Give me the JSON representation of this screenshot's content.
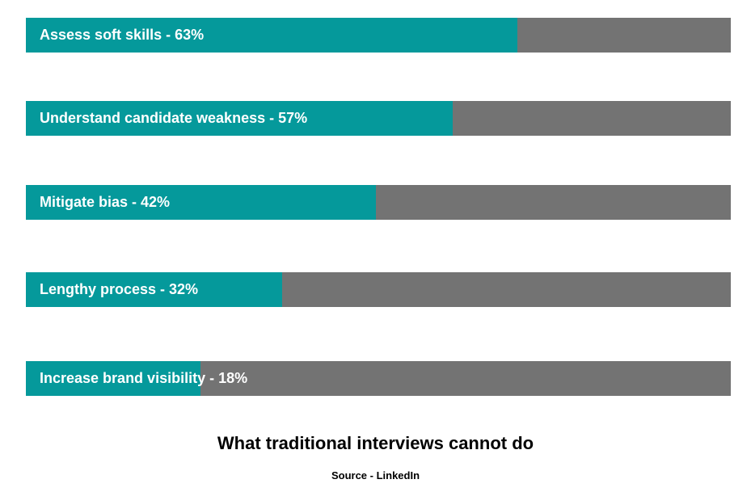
{
  "chart_data": {
    "type": "bar",
    "orientation": "horizontal",
    "title": "What traditional interviews cannot do",
    "source": "Source - LinkedIn",
    "xlim": [
      0,
      100
    ],
    "unit": "%",
    "grid": false,
    "legend": "none",
    "colors": {
      "fill": "#05999b",
      "track": "#737373",
      "label": "#ffffff"
    },
    "bars": [
      {
        "label": "Assess soft skills - 63%",
        "category": "Assess soft skills",
        "value": 63,
        "fill_fraction": 0.697
      },
      {
        "label": "Understand candidate weakness - 57%",
        "category": "Understand candidate weakness",
        "value": 57,
        "fill_fraction": 0.605
      },
      {
        "label": "Mitigate bias - 42%",
        "category": "Mitigate bias",
        "value": 42,
        "fill_fraction": 0.496
      },
      {
        "label": "Lengthy process - 32%",
        "category": "Lengthy process",
        "value": 32,
        "fill_fraction": 0.363
      },
      {
        "label": "Increase brand visibility - 18%",
        "category": "Increase brand visibility",
        "value": 18,
        "fill_fraction": 0.248
      }
    ]
  }
}
